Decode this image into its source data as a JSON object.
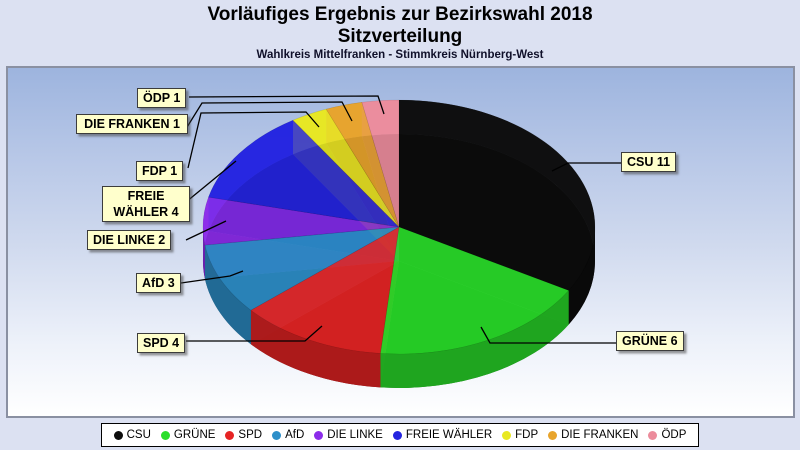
{
  "title": {
    "line1": "Vorläufiges Ergebnis zur Bezirkswahl 2018",
    "line2": "Sitzverteilung",
    "subtitle": "Wahlkreis Mittelfranken - Stimmkreis Nürnberg-West"
  },
  "chart_data": {
    "type": "pie",
    "style": "3d-translucent",
    "title": "Vorläufiges Ergebnis zur Bezirkswahl 2018 — Sitzverteilung",
    "subtitle": "Wahlkreis Mittelfranken - Stimmkreis Nürnberg-West",
    "unit": "Sitze",
    "total_seats": 33,
    "start_angle_deg": 0,
    "direction": "clockwise",
    "legend_position": "bottom",
    "series": [
      {
        "name": "CSU",
        "value": 11,
        "color": "#0c0c0c",
        "label": "CSU 11"
      },
      {
        "name": "GRÜNE",
        "value": 6,
        "color": "#2ade2a",
        "label": "GRÜNE 6"
      },
      {
        "name": "SPD",
        "value": 4,
        "color": "#e62424",
        "label": "SPD 4"
      },
      {
        "name": "AfD",
        "value": 3,
        "color": "#2d8fc9",
        "label": "AfD 3"
      },
      {
        "name": "DIE LINKE",
        "value": 2,
        "color": "#8c2cea",
        "label": "DIE LINKE 2"
      },
      {
        "name": "FREIE WÄHLER",
        "value": 4,
        "color": "#2424e0",
        "label": "FREIE WÄHLER 4"
      },
      {
        "name": "FDP",
        "value": 1,
        "color": "#e8e822",
        "label": "FDP 1"
      },
      {
        "name": "DIE FRANKEN",
        "value": 1,
        "color": "#e8a42c",
        "label": "DIE FRANKEN 1"
      },
      {
        "name": "ÖDP",
        "value": 1,
        "color": "#ec8c9c",
        "label": "ÖDP 1"
      }
    ]
  }
}
